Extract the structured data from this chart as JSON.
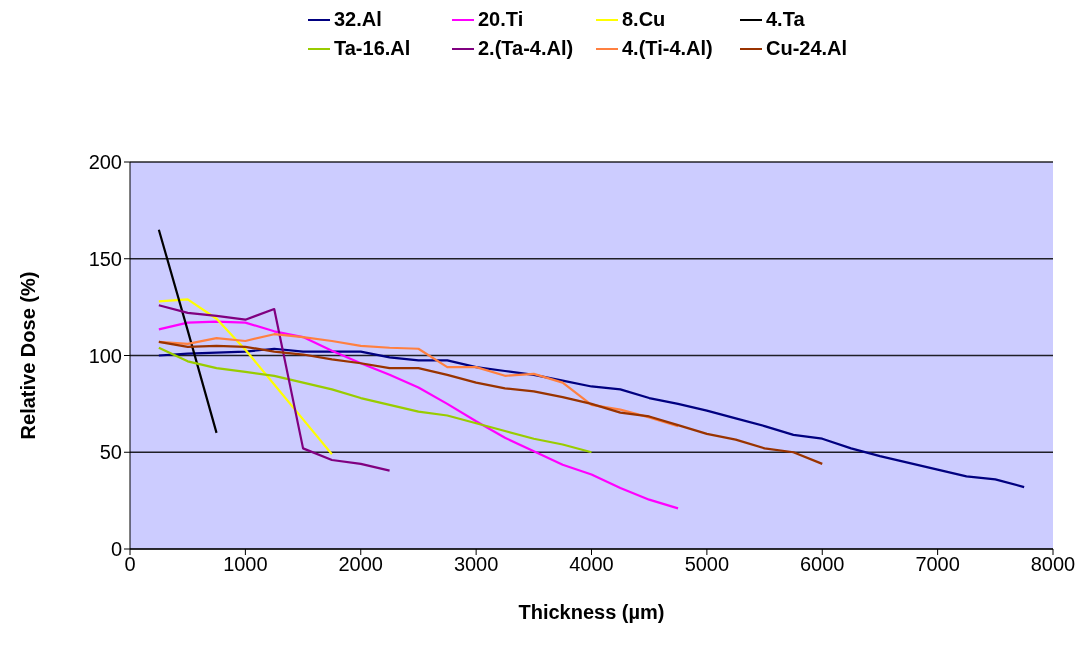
{
  "chart_data": {
    "type": "line",
    "xlabel": "Thickness (µm)",
    "ylabel": "Relative Dose (%)",
    "xlim": [
      0,
      8000
    ],
    "xticks": [
      0,
      1000,
      2000,
      3000,
      4000,
      5000,
      6000,
      7000,
      8000
    ],
    "ylim": [
      0,
      200
    ],
    "yticks": [
      0,
      50,
      100,
      150,
      200
    ],
    "grid": "y",
    "legend": "top",
    "marker": "none",
    "line_style": "solid",
    "series": [
      {
        "name": "32.Al",
        "color": "#000080",
        "x": [
          250,
          500,
          750,
          1000,
          1250,
          1500,
          1750,
          2000,
          2250,
          2500,
          2750,
          3000,
          3250,
          3500,
          3750,
          4000,
          4250,
          4500,
          4750,
          5000,
          5250,
          5500,
          5750,
          6000,
          6250,
          6500,
          6750,
          7000,
          7250,
          7500,
          7750
        ],
        "values": [
          100,
          101,
          101.5,
          102,
          103.5,
          102,
          102,
          102,
          99,
          97.5,
          97.5,
          94,
          92,
          90,
          87,
          84,
          82.5,
          78,
          75,
          71.5,
          67.5,
          63.5,
          59,
          57,
          52,
          48,
          44.5,
          41,
          37.5,
          36,
          32
        ]
      },
      {
        "name": "20.Ti",
        "color": "#ff00ff",
        "x": [
          250,
          500,
          750,
          1000,
          1250,
          1500,
          1750,
          2000,
          2250,
          2500,
          2750,
          3000,
          3250,
          3500,
          3750,
          4000,
          4250,
          4500,
          4750
        ],
        "values": [
          113.5,
          117,
          117.5,
          117,
          112.5,
          109.5,
          102.5,
          96,
          90,
          83.5,
          75,
          66,
          57.5,
          50.5,
          43.5,
          38.5,
          31.5,
          25.5,
          21
        ]
      },
      {
        "name": "8.Cu",
        "color": "#ffff00",
        "x": [
          250,
          500,
          750,
          1000,
          1250,
          1500,
          1750
        ],
        "values": [
          128,
          129,
          119,
          103,
          85,
          67,
          49
        ]
      },
      {
        "name": "4.Ta",
        "color": "#000000",
        "x": [
          250,
          500,
          750
        ],
        "values": [
          165,
          113,
          60
        ]
      },
      {
        "name": "Ta-16.Al",
        "color": "#99cc00",
        "x": [
          250,
          500,
          750,
          1000,
          1250,
          1500,
          1750,
          2000,
          2250,
          2500,
          2750,
          3000,
          3250,
          3500,
          3750,
          4000
        ],
        "values": [
          104,
          97,
          93.5,
          91.5,
          89.5,
          86,
          82.5,
          78,
          74.5,
          71,
          69,
          65,
          61,
          57,
          54,
          50
        ]
      },
      {
        "name": "2.(Ta-4.Al)",
        "color": "#800080",
        "x": [
          250,
          500,
          750,
          1000,
          1250,
          1500,
          1750,
          2000,
          2250
        ],
        "values": [
          126,
          122,
          120.5,
          118.5,
          124,
          52,
          46,
          44,
          40.5
        ]
      },
      {
        "name": "4.(Ti-4.Al)",
        "color": "#ff8040",
        "x": [
          250,
          500,
          750,
          1000,
          1250,
          1500,
          1750,
          2000,
          2250,
          2500,
          2750,
          3000,
          3250,
          3500,
          3750,
          4000,
          4250,
          4500,
          4750
        ],
        "values": [
          107,
          106,
          109,
          107.5,
          111,
          109.5,
          107.5,
          105,
          104,
          103.5,
          94,
          94,
          89.5,
          90.5,
          86,
          74.5,
          72,
          68,
          63.5
        ]
      },
      {
        "name": "Cu-24.Al",
        "color": "#993300",
        "x": [
          250,
          500,
          750,
          1000,
          1250,
          1500,
          1750,
          2000,
          2250,
          2500,
          2750,
          3000,
          3250,
          3500,
          3750,
          4000,
          4250,
          4500,
          4750,
          5000,
          5250,
          5500,
          5750,
          6000
        ],
        "values": [
          107,
          104.5,
          105,
          104.5,
          102,
          100.5,
          98,
          96,
          93.5,
          93.5,
          90,
          86,
          83,
          81.5,
          78.5,
          75,
          70.5,
          68.5,
          64,
          59.5,
          56.5,
          52,
          50,
          44
        ]
      }
    ]
  }
}
